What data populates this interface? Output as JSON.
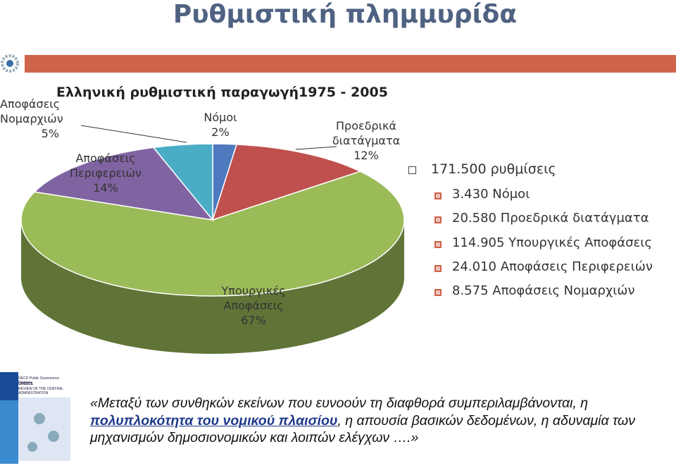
{
  "header": {
    "title": "Ρυθμιστική πλημμυρίδα"
  },
  "chart_data": {
    "type": "pie",
    "title": "Ελληνική ρυθμιστική παραγωγή1975 - 2005",
    "categories": [
      "Νόμοι",
      "Προεδρικά διατάγματα",
      "Υπουργικές Αποφάσεις",
      "Αποφάσεις Περιφερειών",
      "Αποφάσεις Νομαρχιών"
    ],
    "values": [
      2,
      12,
      67,
      14,
      5
    ],
    "value_labels": [
      "2%",
      "12%",
      "67%",
      "14%",
      "5%"
    ],
    "colors": [
      "#4f7ac0",
      "#c0504d",
      "#9bbb59",
      "#8064a2",
      "#4bacc6"
    ]
  },
  "bullets": {
    "main": "171.500 ρυθμίσεις",
    "items": [
      "3.430 Νόμοι",
      "20.580 Προεδρικά διατάγματα",
      "114.905 Υπουργικές Αποφάσεις",
      "24.010 Αποφάσεις Περιφερειών",
      "8.575 Αποφάσεις Νομαρχιών"
    ]
  },
  "quote": {
    "before": "«Μεταξύ των συνθηκών εκείνων που ευνοούν τη διαφθορά συμπεριλαμβάνονται, η",
    "emphasis": "πολυπλοκότητα του νομικού πλαισίου",
    "after": ", η απουσία βασικών δεδομένων, η αδυναμία των μηχανισμών δημοσιονομικών και λοιπών ελέγχων ….»"
  },
  "cover": {
    "series": "OECD Public Governance Reviews",
    "country": "GREECE",
    "subtitle": "REVIEW OF THE CENTRAL ADMINISTRATION"
  }
}
